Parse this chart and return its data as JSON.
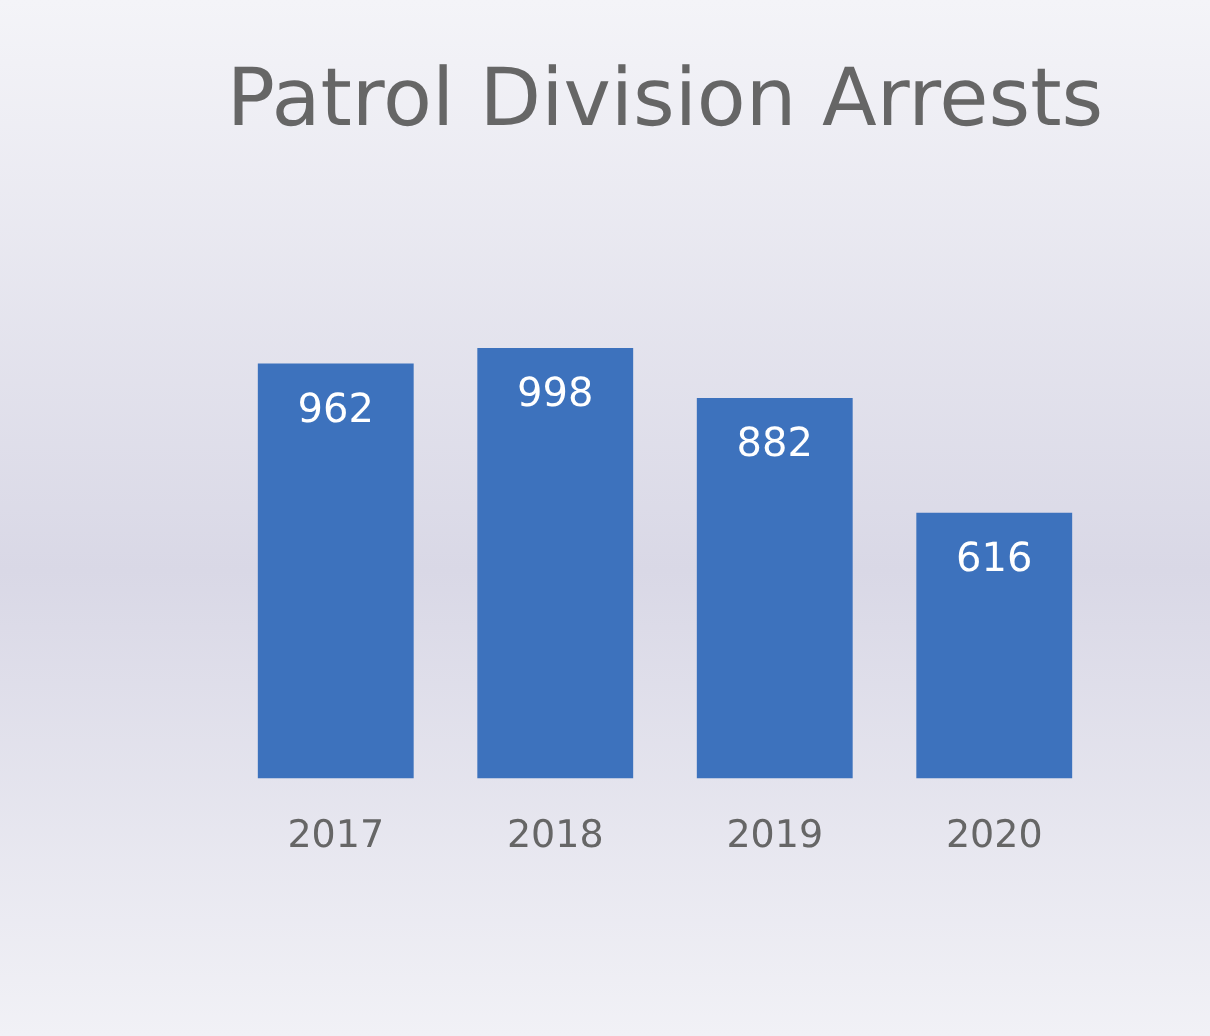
{
  "chart_data": {
    "type": "bar",
    "title": "Patrol Division Arrests",
    "categories": [
      "2017",
      "2018",
      "2019",
      "2020"
    ],
    "values": [
      962,
      998,
      882,
      616
    ],
    "color": "#3d72bd",
    "data_labels": true,
    "grid": false,
    "legend": false
  }
}
